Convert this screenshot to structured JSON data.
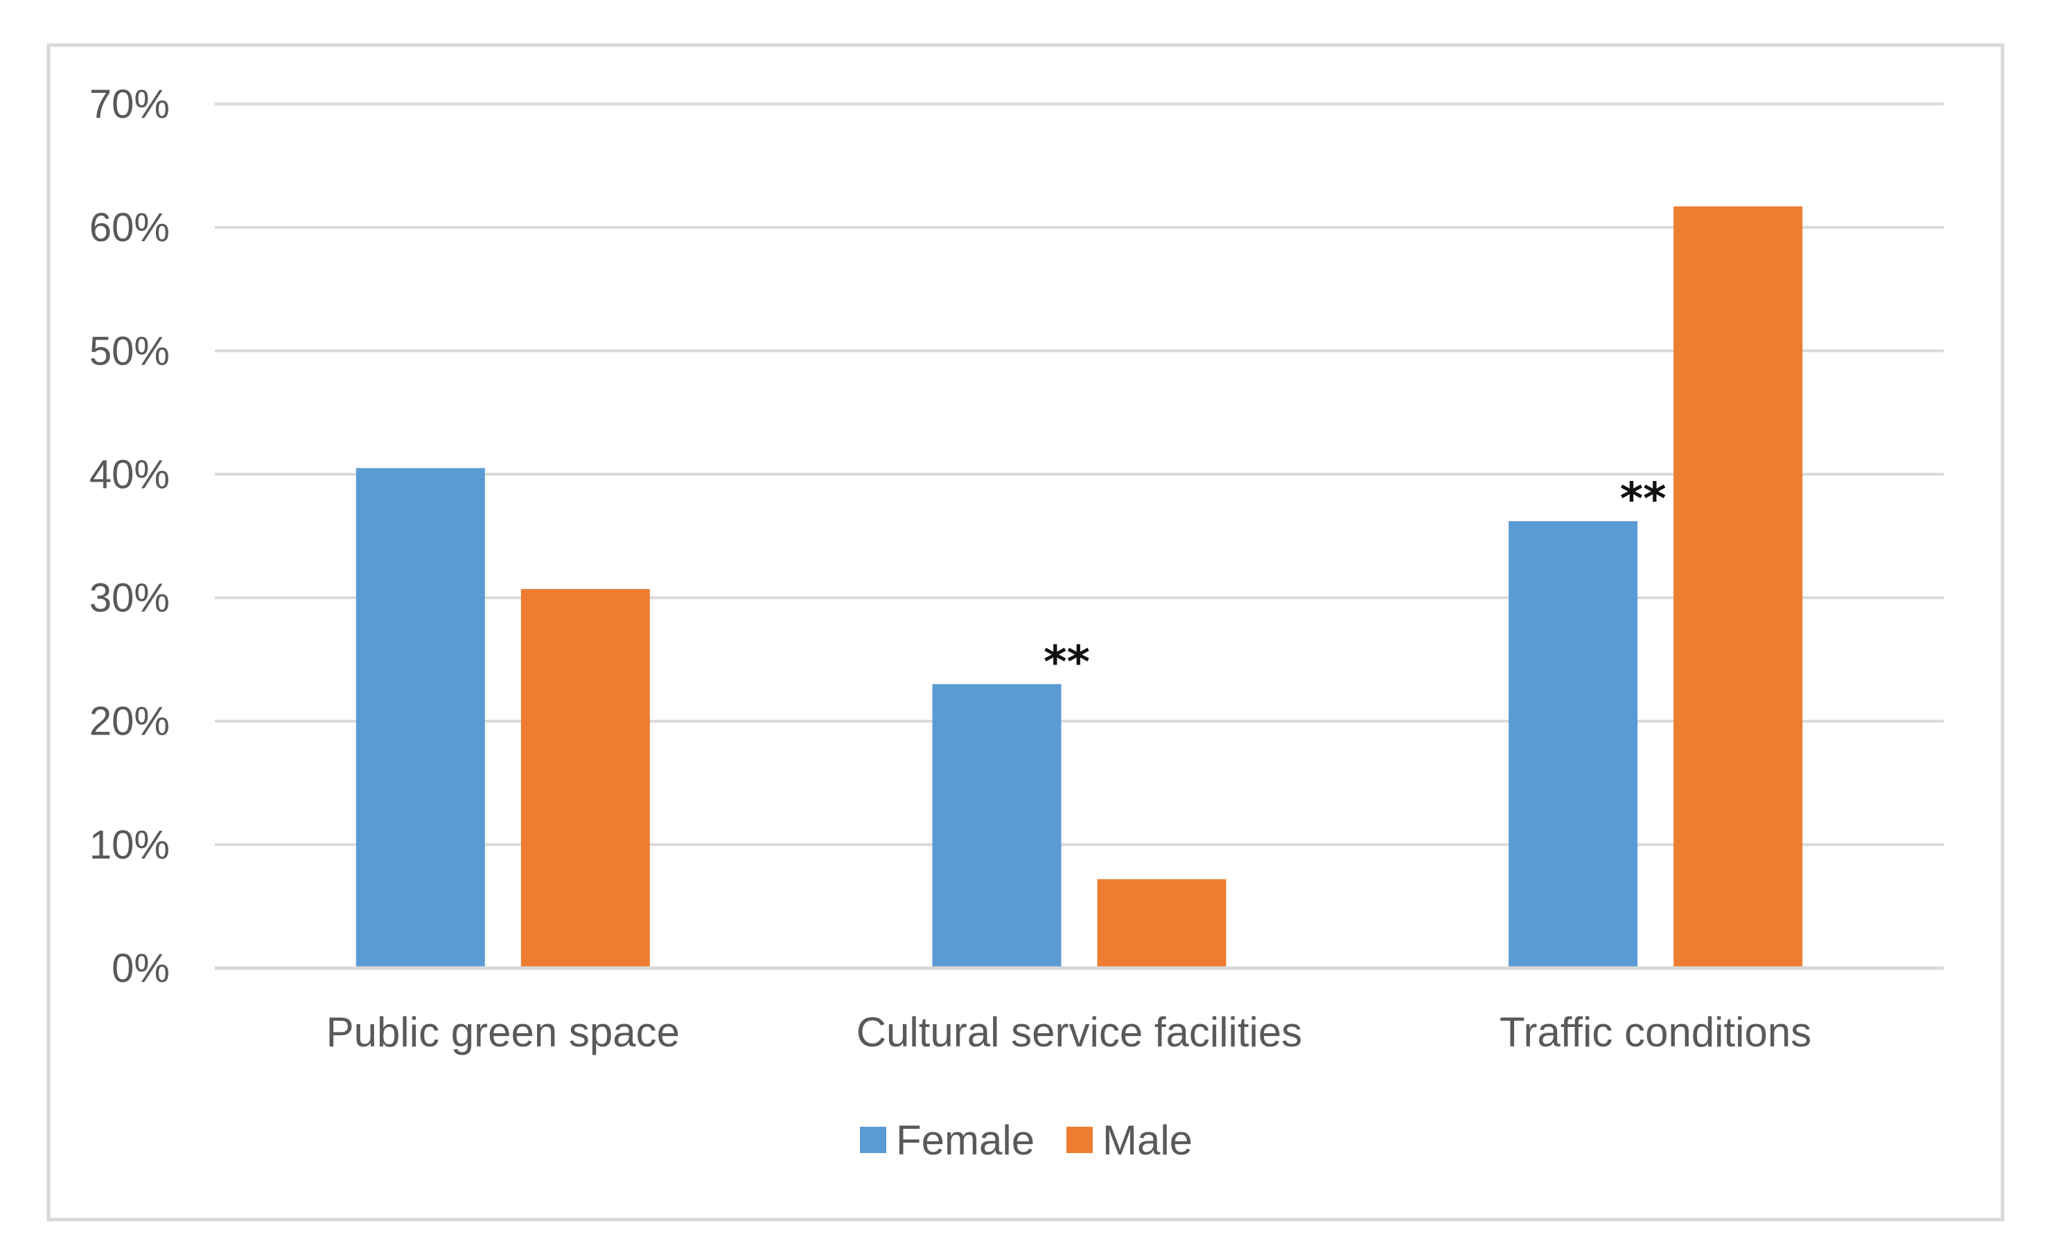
{
  "chart_data": {
    "type": "bar",
    "title": "",
    "xlabel": "",
    "ylabel": "",
    "categories": [
      "Public green space",
      "Cultural service facilities",
      "Traffic conditions"
    ],
    "series": [
      {
        "name": "Female",
        "color": "#5B9BD5",
        "values": [
          40.5,
          23.0,
          36.2
        ]
      },
      {
        "name": "Male",
        "color": "#ED7D31",
        "values": [
          30.7,
          7.2,
          61.7
        ]
      }
    ],
    "ylim": [
      0,
      70
    ],
    "yticks": [
      0,
      10,
      20,
      30,
      40,
      50,
      60,
      70
    ],
    "ytick_suffix": "%",
    "grid": true,
    "legend_position": "bottom",
    "annotations": [
      {
        "category_index": 1,
        "text": "**"
      },
      {
        "category_index": 2,
        "text": "**"
      }
    ]
  }
}
